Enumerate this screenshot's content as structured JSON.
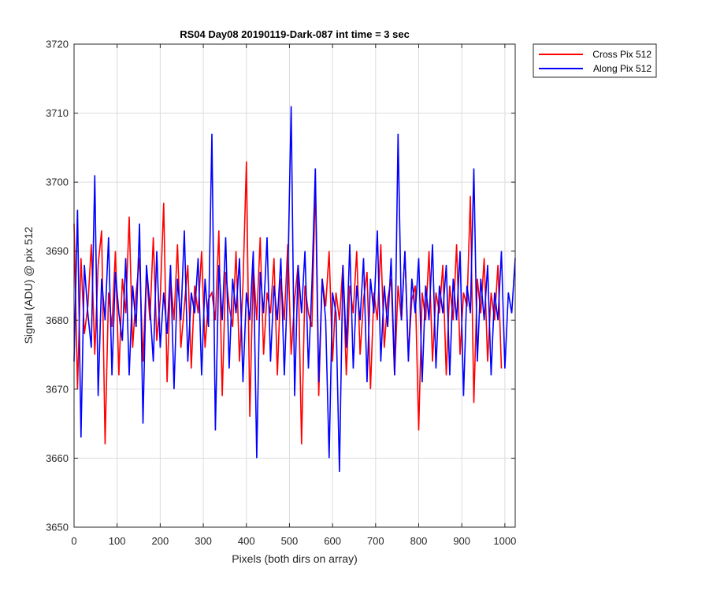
{
  "chart_data": {
    "type": "line",
    "title": "RS04 Day08 20190119-Dark-087 int time = 3 sec",
    "xlabel": "Pixels (both dirs on array)",
    "ylabel": "Signal (ADU) @ pix 512",
    "xlim": [
      0,
      1024
    ],
    "ylim": [
      3650,
      3720
    ],
    "xticks": [
      0,
      100,
      200,
      300,
      400,
      500,
      600,
      700,
      800,
      900,
      1000
    ],
    "yticks": [
      3650,
      3660,
      3670,
      3680,
      3690,
      3700,
      3710,
      3720
    ],
    "xtick_labels": [
      "0",
      "100",
      "200",
      "300",
      "400",
      "500",
      "600",
      "700",
      "800",
      "900",
      "1000"
    ],
    "ytick_labels": [
      "3650",
      "3660",
      "3670",
      "3680",
      "3690",
      "3700",
      "3710",
      "3720"
    ],
    "grid": true,
    "legend_position": "top-right, outside axes",
    "series": [
      {
        "name": "Cross Pix 512",
        "color": "#ff0000",
        "x_start": 0,
        "x_step": 8,
        "values": [
          3694,
          3670,
          3689,
          3678,
          3682,
          3691,
          3675,
          3688,
          3693,
          3662,
          3684,
          3679,
          3690,
          3672,
          3686,
          3681,
          3695,
          3676,
          3684,
          3689,
          3674,
          3687,
          3680,
          3692,
          3677,
          3683,
          3697,
          3671,
          3686,
          3680,
          3691,
          3676,
          3682,
          3688,
          3673,
          3685,
          3681,
          3690,
          3676,
          3683,
          3684,
          3680,
          3693,
          3669,
          3687,
          3682,
          3679,
          3690,
          3674,
          3685,
          3703,
          3666,
          3688,
          3680,
          3692,
          3675,
          3684,
          3681,
          3689,
          3672,
          3686,
          3680,
          3691,
          3675,
          3683,
          3688,
          3662,
          3685,
          3681,
          3679,
          3700,
          3669,
          3686,
          3682,
          3690,
          3674,
          3684,
          3680,
          3688,
          3672,
          3685,
          3681,
          3690,
          3675,
          3683,
          3687,
          3670,
          3684,
          3680,
          3691,
          3676,
          3683,
          3686,
          3672,
          3685,
          3680,
          3690,
          3675,
          3683,
          3685,
          3664,
          3684,
          3680,
          3690,
          3674,
          3684,
          3681,
          3688,
          3672,
          3685,
          3680,
          3691,
          3675,
          3684,
          3682,
          3698,
          3668,
          3686,
          3681,
          3689,
          3674,
          3684,
          3680,
          3688,
          3673
        ]
      },
      {
        "name": "Along Pix 512",
        "color": "#0000ff",
        "x_start": 0,
        "x_step": 8,
        "values": [
          3674,
          3696,
          3663,
          3688,
          3681,
          3676,
          3701,
          3669,
          3686,
          3680,
          3692,
          3672,
          3687,
          3681,
          3677,
          3689,
          3672,
          3685,
          3679,
          3694,
          3665,
          3688,
          3682,
          3674,
          3690,
          3676,
          3684,
          3678,
          3688,
          3670,
          3686,
          3680,
          3693,
          3674,
          3684,
          3681,
          3689,
          3672,
          3686,
          3679,
          3707,
          3664,
          3688,
          3680,
          3692,
          3673,
          3686,
          3681,
          3689,
          3671,
          3684,
          3680,
          3690,
          3660,
          3687,
          3681,
          3692,
          3674,
          3685,
          3680,
          3689,
          3672,
          3686,
          3711,
          3669,
          3688,
          3681,
          3690,
          3673,
          3685,
          3702,
          3671,
          3686,
          3680,
          3660,
          3684,
          3681,
          3658,
          3688,
          3676,
          3691,
          3673,
          3685,
          3680,
          3689,
          3671,
          3686,
          3681,
          3693,
          3674,
          3685,
          3679,
          3689,
          3672,
          3707,
          3680,
          3690,
          3674,
          3686,
          3681,
          3689,
          3671,
          3685,
          3680,
          3691,
          3673,
          3685,
          3681,
          3688,
          3672,
          3686,
          3680,
          3690,
          3669,
          3685,
          3681,
          3702,
          3674,
          3686,
          3680,
          3688,
          3672,
          3684,
          3680,
          3690,
          3673,
          3684,
          3681,
          3689
        ]
      }
    ]
  }
}
